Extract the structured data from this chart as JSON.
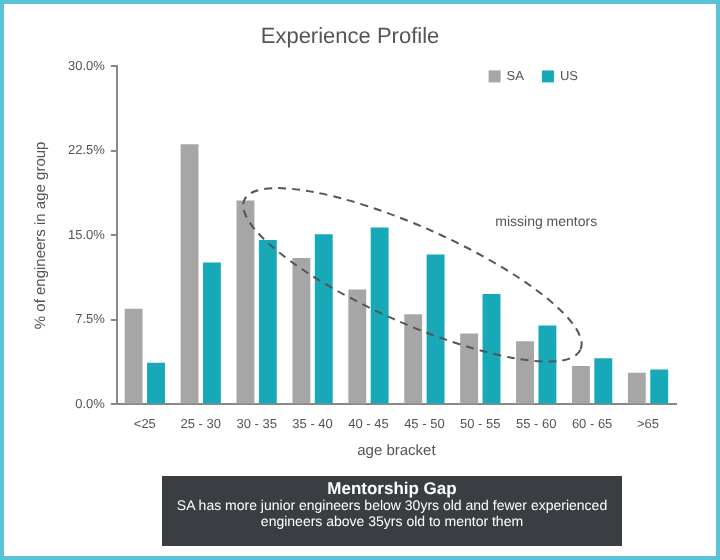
{
  "chart_data": {
    "type": "bar",
    "title": "Experience Profile",
    "xlabel": "age bracket",
    "ylabel": "% of engineers in age group",
    "categories": [
      "<25",
      "25 - 30",
      "30 - 35",
      "35 - 40",
      "40 - 45",
      "45 - 50",
      "50 - 55",
      "55 - 60",
      "60 - 65",
      ">65"
    ],
    "series": [
      {
        "name": "SA",
        "color": "#a6a6a6",
        "values": [
          8.5,
          23.1,
          18.1,
          13.0,
          10.2,
          8.0,
          6.3,
          5.6,
          3.4,
          2.8
        ]
      },
      {
        "name": "US",
        "color": "#17a9b8",
        "values": [
          3.7,
          12.6,
          14.6,
          15.1,
          15.7,
          13.3,
          9.8,
          7.0,
          4.1,
          3.1
        ]
      }
    ],
    "ylim": [
      0,
      30
    ],
    "yticks": [
      {
        "value": 0,
        "label": "0.0%"
      },
      {
        "value": 7.5,
        "label": "7.5%"
      },
      {
        "value": 15,
        "label": "15.0%"
      },
      {
        "value": 22.5,
        "label": "22.5%"
      },
      {
        "value": 30,
        "label": "30.0%"
      }
    ],
    "grid": false,
    "legend": "top right",
    "annotations": [
      "missing mentors",
      "Mentorship Gap",
      "SA has more junior engineers below 30yrs old and fewer experienced engineers above 35yrs old to mentor them"
    ]
  }
}
